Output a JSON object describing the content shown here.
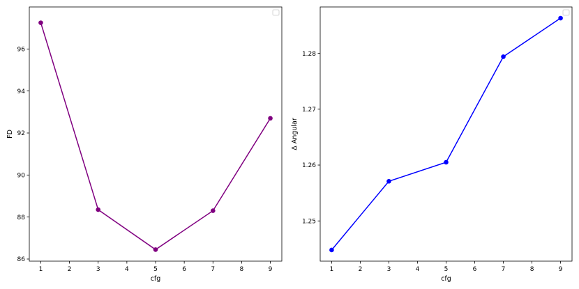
{
  "chart_data": [
    {
      "type": "line",
      "xlabel": "cfg",
      "ylabel": "FD",
      "x": [
        1,
        3,
        5,
        7,
        9
      ],
      "series": [
        {
          "values": [
            97.25,
            88.35,
            86.45,
            88.3,
            92.7
          ],
          "color": "#800080"
        }
      ],
      "xlim": [
        0.6,
        9.4
      ],
      "ylim": [
        85.9,
        98.0
      ],
      "xticks": [
        1,
        2,
        3,
        4,
        5,
        6,
        7,
        8,
        9
      ],
      "yticks": [
        86,
        88,
        90,
        92,
        94,
        96
      ],
      "legend": "top-right, empty",
      "grid": false
    },
    {
      "type": "line",
      "xlabel": "cfg",
      "ylabel": "Δ Angular",
      "x": [
        1,
        3,
        5,
        7,
        9
      ],
      "series": [
        {
          "values": [
            1.2448,
            1.2571,
            1.2605,
            1.2794,
            1.2863
          ],
          "color": "#0000ff"
        }
      ],
      "xlim": [
        0.6,
        9.4
      ],
      "ylim": [
        1.2428,
        1.2883
      ],
      "xticks": [
        1,
        2,
        3,
        4,
        5,
        6,
        7,
        8,
        9
      ],
      "yticks": [
        1.25,
        1.26,
        1.27,
        1.28
      ],
      "legend": "top-right, empty",
      "grid": false
    }
  ]
}
